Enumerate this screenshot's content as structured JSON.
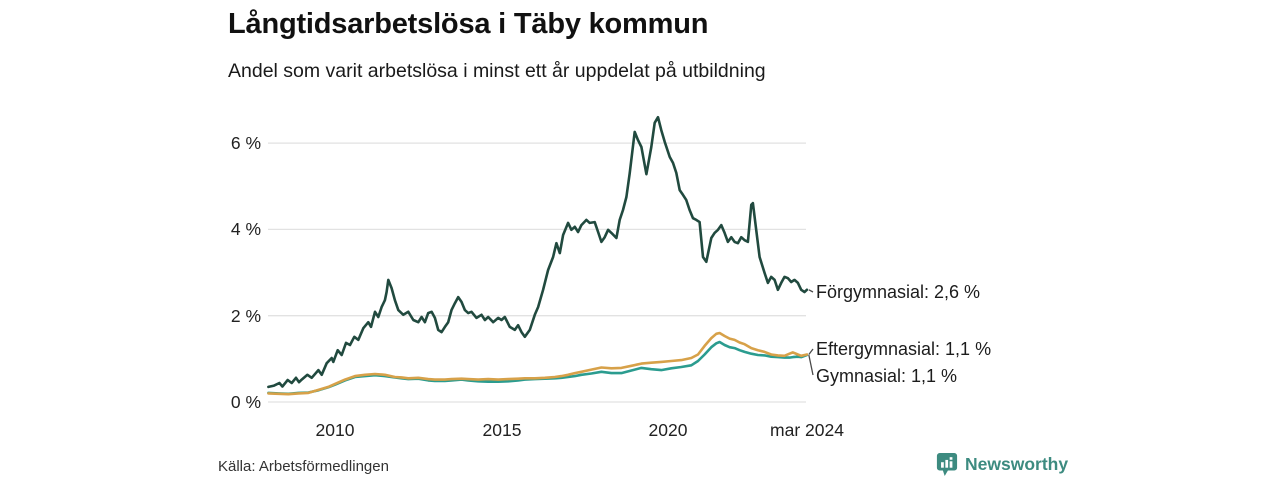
{
  "header": {
    "title": "Långtidsarbetslösa i Täby kommun",
    "subtitle": "Andel som varit arbetslösa i minst ett år uppdelat på utbildning"
  },
  "source": "Källa: Arbetsförmedlingen",
  "branding": {
    "name": "Newsworthy",
    "brand_color": "#3d8b80"
  },
  "chart_data": {
    "type": "line",
    "title": "Långtidsarbetslösa i Täby kommun",
    "subtitle": "Andel som varit arbetslösa i minst ett år uppdelat på utbildning",
    "xlabel": "",
    "ylabel": "",
    "xlim": [
      2007.95,
      2024.3
    ],
    "ylim": [
      0,
      6.65
    ],
    "grid": true,
    "legend_position": "right-end-labels",
    "grid_color": "#e2e2e2",
    "y_ticks": [
      {
        "label": "6 %",
        "value": 6
      },
      {
        "label": "4 %",
        "value": 4
      },
      {
        "label": "2 %",
        "value": 2
      },
      {
        "label": "0 %",
        "value": 0
      }
    ],
    "x_ticks": [
      {
        "label": "2010",
        "year": 2010
      },
      {
        "label": "2015",
        "year": 2015
      },
      {
        "label": "2020",
        "year": 2020
      },
      {
        "label": "mar 2024",
        "year": 2024.17
      }
    ],
    "series": [
      {
        "name": "Förgymnasial",
        "label": "Förgymnasial: 2,6 %",
        "end_value": "2,6 %",
        "color": "#214a3f",
        "points": [
          [
            2008.0,
            0.35
          ],
          [
            2008.17,
            0.38
          ],
          [
            2008.33,
            0.44
          ],
          [
            2008.42,
            0.36
          ],
          [
            2008.58,
            0.51
          ],
          [
            2008.7,
            0.44
          ],
          [
            2008.83,
            0.56
          ],
          [
            2008.92,
            0.46
          ],
          [
            2009.0,
            0.52
          ],
          [
            2009.17,
            0.63
          ],
          [
            2009.3,
            0.56
          ],
          [
            2009.5,
            0.74
          ],
          [
            2009.6,
            0.63
          ],
          [
            2009.75,
            0.9
          ],
          [
            2009.9,
            1.02
          ],
          [
            2009.95,
            0.93
          ],
          [
            2010.08,
            1.2
          ],
          [
            2010.2,
            1.09
          ],
          [
            2010.33,
            1.37
          ],
          [
            2010.45,
            1.32
          ],
          [
            2010.58,
            1.51
          ],
          [
            2010.7,
            1.44
          ],
          [
            2010.85,
            1.71
          ],
          [
            2011.0,
            1.85
          ],
          [
            2011.08,
            1.74
          ],
          [
            2011.2,
            2.09
          ],
          [
            2011.3,
            1.97
          ],
          [
            2011.4,
            2.2
          ],
          [
            2011.5,
            2.36
          ],
          [
            2011.55,
            2.55
          ],
          [
            2011.6,
            2.83
          ],
          [
            2011.7,
            2.64
          ],
          [
            2011.8,
            2.36
          ],
          [
            2011.9,
            2.13
          ],
          [
            2012.05,
            2.02
          ],
          [
            2012.2,
            2.09
          ],
          [
            2012.35,
            1.9
          ],
          [
            2012.5,
            1.85
          ],
          [
            2012.6,
            1.97
          ],
          [
            2012.7,
            1.85
          ],
          [
            2012.8,
            2.06
          ],
          [
            2012.9,
            2.09
          ],
          [
            2013.0,
            1.95
          ],
          [
            2013.1,
            1.67
          ],
          [
            2013.2,
            1.62
          ],
          [
            2013.3,
            1.74
          ],
          [
            2013.4,
            1.85
          ],
          [
            2013.5,
            2.13
          ],
          [
            2013.6,
            2.29
          ],
          [
            2013.7,
            2.43
          ],
          [
            2013.8,
            2.32
          ],
          [
            2013.9,
            2.13
          ],
          [
            2014.0,
            2.06
          ],
          [
            2014.1,
            2.09
          ],
          [
            2014.25,
            1.95
          ],
          [
            2014.4,
            2.02
          ],
          [
            2014.5,
            1.9
          ],
          [
            2014.6,
            1.97
          ],
          [
            2014.75,
            1.85
          ],
          [
            2014.9,
            1.95
          ],
          [
            2015.0,
            1.9
          ],
          [
            2015.1,
            1.97
          ],
          [
            2015.25,
            1.74
          ],
          [
            2015.4,
            1.67
          ],
          [
            2015.5,
            1.78
          ],
          [
            2015.6,
            1.62
          ],
          [
            2015.7,
            1.51
          ],
          [
            2015.85,
            1.67
          ],
          [
            2016.0,
            2.02
          ],
          [
            2016.1,
            2.2
          ],
          [
            2016.25,
            2.6
          ],
          [
            2016.4,
            3.06
          ],
          [
            2016.55,
            3.36
          ],
          [
            2016.65,
            3.68
          ],
          [
            2016.75,
            3.45
          ],
          [
            2016.85,
            3.87
          ],
          [
            2017.0,
            4.15
          ],
          [
            2017.1,
            3.99
          ],
          [
            2017.2,
            4.06
          ],
          [
            2017.3,
            3.94
          ],
          [
            2017.4,
            4.1
          ],
          [
            2017.55,
            4.22
          ],
          [
            2017.65,
            4.15
          ],
          [
            2017.8,
            4.17
          ],
          [
            2017.9,
            3.94
          ],
          [
            2018.0,
            3.71
          ],
          [
            2018.1,
            3.82
          ],
          [
            2018.2,
            3.99
          ],
          [
            2018.3,
            3.92
          ],
          [
            2018.45,
            3.8
          ],
          [
            2018.55,
            4.22
          ],
          [
            2018.65,
            4.45
          ],
          [
            2018.75,
            4.75
          ],
          [
            2018.85,
            5.3
          ],
          [
            2019.0,
            6.26
          ],
          [
            2019.1,
            6.07
          ],
          [
            2019.2,
            5.91
          ],
          [
            2019.35,
            5.28
          ],
          [
            2019.5,
            5.91
          ],
          [
            2019.6,
            6.47
          ],
          [
            2019.7,
            6.6
          ],
          [
            2019.8,
            6.3
          ],
          [
            2019.9,
            6.03
          ],
          [
            2020.05,
            5.68
          ],
          [
            2020.15,
            5.54
          ],
          [
            2020.25,
            5.31
          ],
          [
            2020.35,
            4.91
          ],
          [
            2020.45,
            4.8
          ],
          [
            2020.55,
            4.68
          ],
          [
            2020.65,
            4.45
          ],
          [
            2020.75,
            4.26
          ],
          [
            2020.85,
            4.22
          ],
          [
            2020.95,
            4.17
          ],
          [
            2021.05,
            3.36
          ],
          [
            2021.15,
            3.25
          ],
          [
            2021.3,
            3.8
          ],
          [
            2021.4,
            3.92
          ],
          [
            2021.5,
            3.99
          ],
          [
            2021.6,
            4.1
          ],
          [
            2021.7,
            3.92
          ],
          [
            2021.8,
            3.71
          ],
          [
            2021.9,
            3.82
          ],
          [
            2022.0,
            3.71
          ],
          [
            2022.1,
            3.68
          ],
          [
            2022.2,
            3.82
          ],
          [
            2022.3,
            3.75
          ],
          [
            2022.4,
            3.71
          ],
          [
            2022.5,
            4.57
          ],
          [
            2022.55,
            4.61
          ],
          [
            2022.65,
            3.99
          ],
          [
            2022.75,
            3.36
          ],
          [
            2022.9,
            2.99
          ],
          [
            2023.0,
            2.76
          ],
          [
            2023.1,
            2.9
          ],
          [
            2023.2,
            2.83
          ],
          [
            2023.3,
            2.6
          ],
          [
            2023.4,
            2.76
          ],
          [
            2023.5,
            2.9
          ],
          [
            2023.6,
            2.87
          ],
          [
            2023.7,
            2.78
          ],
          [
            2023.8,
            2.83
          ],
          [
            2023.9,
            2.76
          ],
          [
            2024.0,
            2.6
          ],
          [
            2024.1,
            2.55
          ],
          [
            2024.17,
            2.6
          ]
        ]
      },
      {
        "name": "Gymnasial",
        "label": "Gymnasial: 1,1 %",
        "end_value": "1,1 %",
        "color": "#2b9c8f",
        "points": [
          [
            2008.0,
            0.21
          ],
          [
            2008.3,
            0.2
          ],
          [
            2008.6,
            0.19
          ],
          [
            2008.9,
            0.21
          ],
          [
            2009.2,
            0.22
          ],
          [
            2009.5,
            0.27
          ],
          [
            2009.8,
            0.34
          ],
          [
            2010.0,
            0.4
          ],
          [
            2010.3,
            0.5
          ],
          [
            2010.6,
            0.58
          ],
          [
            2010.9,
            0.6
          ],
          [
            2011.2,
            0.62
          ],
          [
            2011.5,
            0.6
          ],
          [
            2011.8,
            0.57
          ],
          [
            2012.0,
            0.55
          ],
          [
            2012.2,
            0.53
          ],
          [
            2012.5,
            0.54
          ],
          [
            2012.8,
            0.5
          ],
          [
            2013.0,
            0.49
          ],
          [
            2013.3,
            0.49
          ],
          [
            2013.5,
            0.5
          ],
          [
            2013.8,
            0.52
          ],
          [
            2014.0,
            0.5
          ],
          [
            2014.3,
            0.48
          ],
          [
            2014.6,
            0.47
          ],
          [
            2014.9,
            0.47
          ],
          [
            2015.2,
            0.48
          ],
          [
            2015.5,
            0.5
          ],
          [
            2015.7,
            0.52
          ],
          [
            2016.0,
            0.53
          ],
          [
            2016.3,
            0.54
          ],
          [
            2016.6,
            0.55
          ],
          [
            2016.8,
            0.56
          ],
          [
            2017.0,
            0.58
          ],
          [
            2017.2,
            0.6
          ],
          [
            2017.4,
            0.63
          ],
          [
            2017.7,
            0.66
          ],
          [
            2018.0,
            0.7
          ],
          [
            2018.3,
            0.67
          ],
          [
            2018.6,
            0.67
          ],
          [
            2018.9,
            0.73
          ],
          [
            2019.2,
            0.79
          ],
          [
            2019.5,
            0.76
          ],
          [
            2019.8,
            0.74
          ],
          [
            2020.1,
            0.78
          ],
          [
            2020.4,
            0.81
          ],
          [
            2020.7,
            0.85
          ],
          [
            2020.9,
            0.95
          ],
          [
            2021.1,
            1.1
          ],
          [
            2021.3,
            1.27
          ],
          [
            2021.45,
            1.36
          ],
          [
            2021.55,
            1.39
          ],
          [
            2021.7,
            1.32
          ],
          [
            2021.85,
            1.27
          ],
          [
            2022.0,
            1.25
          ],
          [
            2022.15,
            1.2
          ],
          [
            2022.3,
            1.16
          ],
          [
            2022.5,
            1.12
          ],
          [
            2022.7,
            1.09
          ],
          [
            2022.9,
            1.08
          ],
          [
            2023.1,
            1.05
          ],
          [
            2023.3,
            1.04
          ],
          [
            2023.5,
            1.03
          ],
          [
            2023.65,
            1.03
          ],
          [
            2023.75,
            1.04
          ],
          [
            2023.9,
            1.05
          ],
          [
            2024.0,
            1.04
          ],
          [
            2024.17,
            1.09
          ]
        ]
      },
      {
        "name": "Eftergymnasial",
        "label": "Eftergymnasial: 1,1 %",
        "end_value": "1,1 %",
        "color": "#d7a149",
        "points": [
          [
            2008.0,
            0.2
          ],
          [
            2008.3,
            0.19
          ],
          [
            2008.6,
            0.18
          ],
          [
            2008.9,
            0.2
          ],
          [
            2009.2,
            0.21
          ],
          [
            2009.5,
            0.28
          ],
          [
            2009.8,
            0.35
          ],
          [
            2010.0,
            0.42
          ],
          [
            2010.3,
            0.52
          ],
          [
            2010.6,
            0.6
          ],
          [
            2010.9,
            0.63
          ],
          [
            2011.2,
            0.65
          ],
          [
            2011.5,
            0.63
          ],
          [
            2011.8,
            0.58
          ],
          [
            2012.0,
            0.57
          ],
          [
            2012.2,
            0.55
          ],
          [
            2012.5,
            0.56
          ],
          [
            2012.8,
            0.53
          ],
          [
            2013.0,
            0.52
          ],
          [
            2013.3,
            0.52
          ],
          [
            2013.5,
            0.53
          ],
          [
            2013.8,
            0.54
          ],
          [
            2014.0,
            0.53
          ],
          [
            2014.3,
            0.52
          ],
          [
            2014.6,
            0.53
          ],
          [
            2014.9,
            0.52
          ],
          [
            2015.2,
            0.53
          ],
          [
            2015.5,
            0.54
          ],
          [
            2015.7,
            0.55
          ],
          [
            2016.0,
            0.55
          ],
          [
            2016.3,
            0.56
          ],
          [
            2016.6,
            0.58
          ],
          [
            2016.8,
            0.6
          ],
          [
            2017.0,
            0.63
          ],
          [
            2017.2,
            0.67
          ],
          [
            2017.4,
            0.7
          ],
          [
            2017.7,
            0.75
          ],
          [
            2018.0,
            0.8
          ],
          [
            2018.3,
            0.78
          ],
          [
            2018.6,
            0.79
          ],
          [
            2018.9,
            0.84
          ],
          [
            2019.2,
            0.89
          ],
          [
            2019.5,
            0.91
          ],
          [
            2019.8,
            0.93
          ],
          [
            2020.1,
            0.95
          ],
          [
            2020.4,
            0.97
          ],
          [
            2020.7,
            1.02
          ],
          [
            2020.9,
            1.1
          ],
          [
            2021.1,
            1.3
          ],
          [
            2021.3,
            1.48
          ],
          [
            2021.45,
            1.58
          ],
          [
            2021.55,
            1.6
          ],
          [
            2021.7,
            1.53
          ],
          [
            2021.85,
            1.47
          ],
          [
            2022.0,
            1.44
          ],
          [
            2022.15,
            1.38
          ],
          [
            2022.3,
            1.34
          ],
          [
            2022.5,
            1.25
          ],
          [
            2022.7,
            1.2
          ],
          [
            2022.9,
            1.16
          ],
          [
            2023.1,
            1.1
          ],
          [
            2023.3,
            1.08
          ],
          [
            2023.5,
            1.07
          ],
          [
            2023.65,
            1.12
          ],
          [
            2023.75,
            1.15
          ],
          [
            2023.9,
            1.1
          ],
          [
            2024.0,
            1.07
          ],
          [
            2024.17,
            1.1
          ]
        ]
      }
    ]
  }
}
